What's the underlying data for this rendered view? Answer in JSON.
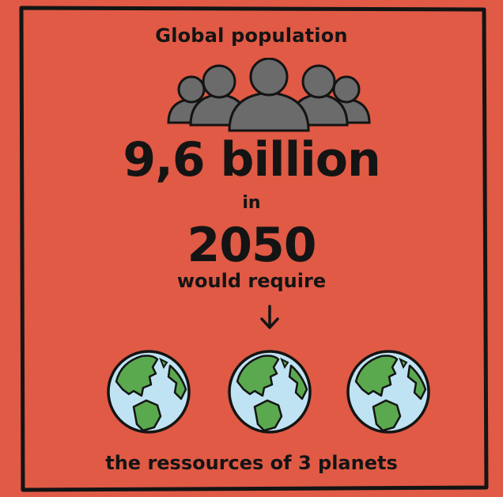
{
  "title": "Global population",
  "population": "9,6 billion",
  "in_word": "in",
  "year": "2050",
  "would_require": "would require",
  "footer": "the ressources of 3 planets",
  "icons": {
    "people": "people-group-icon",
    "arrow": "arrow-down-icon",
    "globe": "earth-globe-icon",
    "globe_count": 3
  },
  "colors": {
    "background": "#e05a45",
    "text": "#141414",
    "people": "#6b6b6b",
    "ocean": "#bfe3f2",
    "land": "#5aa94e"
  }
}
